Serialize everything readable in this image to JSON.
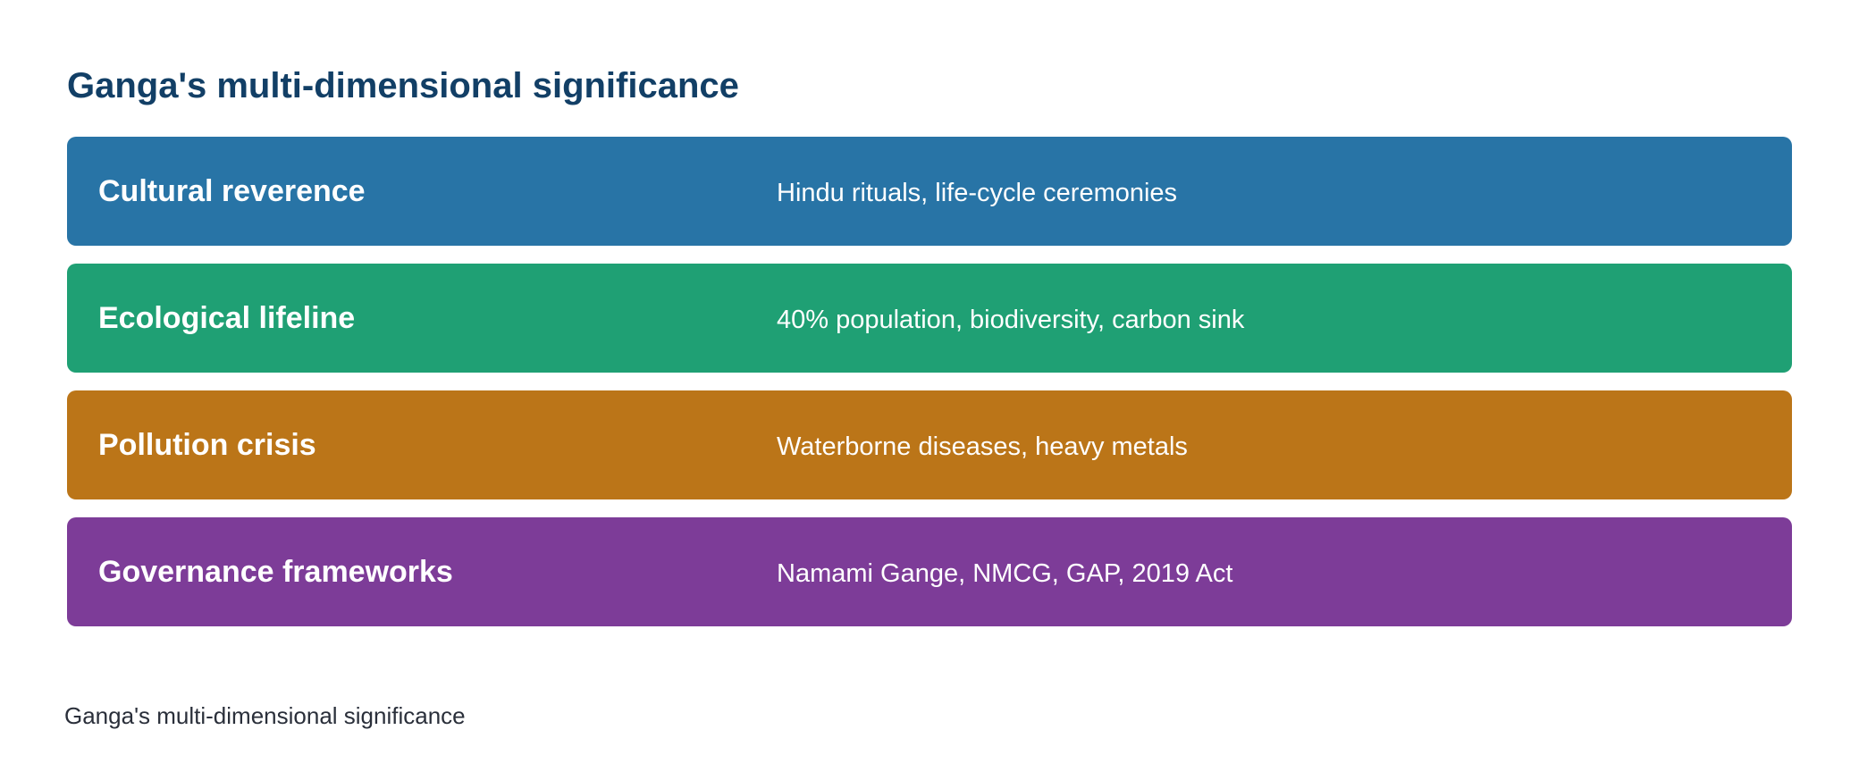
{
  "title": "Ganga's multi-dimensional significance",
  "rows": [
    {
      "label": "Cultural reverence",
      "description": "Hindu rituals, life-cycle ceremonies",
      "color": "#2874a6"
    },
    {
      "label": "Ecological lifeline",
      "description": "40% population, biodiversity, carbon sink",
      "color": "#1fa074"
    },
    {
      "label": "Pollution crisis",
      "description": "Waterborne diseases, heavy metals",
      "color": "#bb7518"
    },
    {
      "label": "Governance frameworks",
      "description": "Namami Gange, NMCG, GAP, 2019 Act",
      "color": "#7d3c98"
    }
  ],
  "caption": "Ganga's multi-dimensional significance"
}
